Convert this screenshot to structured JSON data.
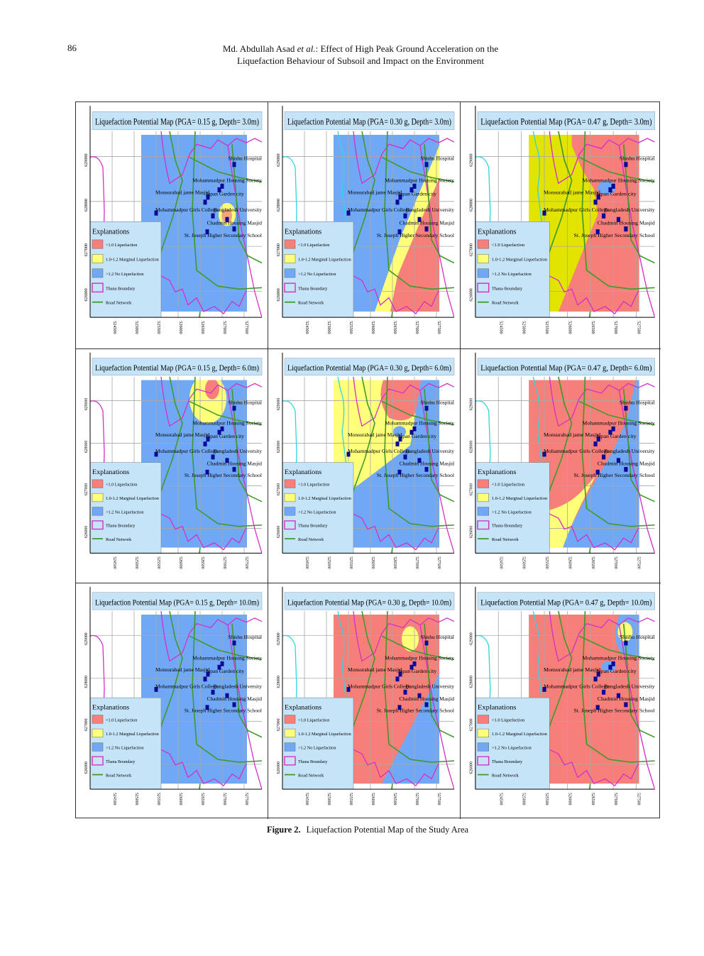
{
  "header": {
    "page_number": "86",
    "authors": "Md. Abdullah Asad",
    "et_al": "et al.",
    "title_line1": ":   Effect of High Peak Ground Acceleration on the",
    "title_line2": "Liquefaction Behaviour of Subsoil and Impact on the Environment"
  },
  "figure": {
    "label": "Figure 2.",
    "caption": "Liquefaction Potential Map of the Study Area",
    "colors": {
      "liquefaction": "#f77f7a",
      "marginal": "#ffff7a",
      "marginal_strong": "#e3e300",
      "no_liquefaction": "#70a8f5",
      "thana_boundary": "#d62fc8",
      "road_network": "#3f9a2a",
      "river": "#2fd6e0",
      "title_bg": "#c6e4f8",
      "legend_bg": "#c6e4f8",
      "place_marker": "#0a0a9a"
    },
    "legend": {
      "title": "Explanations",
      "items": [
        {
          "label": "<1.0 Liquefaction",
          "kind": "swatch",
          "color": "#f77f7a"
        },
        {
          "label": "1.0-1.2 Marginal Liquefaction",
          "kind": "swatch",
          "color": "#ffff7a"
        },
        {
          "label": ">1.2 No Liquefaction",
          "kind": "swatch",
          "color": "#70a8f5"
        },
        {
          "label": "Thana Boundary",
          "kind": "outline",
          "color": "#d62fc8"
        },
        {
          "label": "Road Network",
          "kind": "line",
          "color": "#3f9a2a"
        }
      ]
    },
    "places": [
      "Shishu Hospital",
      "Mohammadpur Housing Society",
      "Monsurabad jame Masjid",
      "Japan Garden city",
      "Mohammadpur Girls College",
      "Bangladesh University",
      "Chadmin Housing Masjid",
      "St. Joseph Higher Secondary School"
    ],
    "y_ticks": [
      "629000",
      "628000",
      "627000",
      "626000"
    ],
    "x_ticks": [
      "524500",
      "525000",
      "525500",
      "526000",
      "526500",
      "527000",
      "527500"
    ],
    "panels": [
      {
        "title": "Liquefaction Potential Map (PGA= 0.15 g, Depth= 3.0m)",
        "pga": "0.15 g",
        "depth": "3.0m"
      },
      {
        "title": "Liquefaction Potential Map (PGA= 0.30 g, Depth= 3.0m)",
        "pga": "0.30 g",
        "depth": "3.0m"
      },
      {
        "title": "Liquefaction Potential Map (PGA= 0.47 g, Depth= 3.0m)",
        "pga": "0.47 g",
        "depth": "3.0m"
      },
      {
        "title": "Liquefaction Potential Map (PGA= 0.15 g, Depth= 6.0m)",
        "pga": "0.15 g",
        "depth": "6.0m"
      },
      {
        "title": "Liquefaction Potential Map (PGA= 0.30 g, Depth= 6.0m)",
        "pga": "0.30 g",
        "depth": "6.0m"
      },
      {
        "title": "Liquefaction Potential Map (PGA= 0.47 g, Depth= 6.0m)",
        "pga": "0.47 g",
        "depth": "6.0m"
      },
      {
        "title": "Liquefaction Potential Map (PGA= 0.15 g, Depth= 10.0m)",
        "pga": "0.15 g",
        "depth": "10.0m"
      },
      {
        "title": "Liquefaction Potential Map (PGA= 0.30 g, Depth= 10.0m)",
        "pga": "0.30 g",
        "depth": "10.0m"
      },
      {
        "title": "Liquefaction Potential Map (PGA= 0.47 g, Depth= 10.0m)",
        "pga": "0.47 g",
        "depth": "10.0m"
      }
    ]
  }
}
